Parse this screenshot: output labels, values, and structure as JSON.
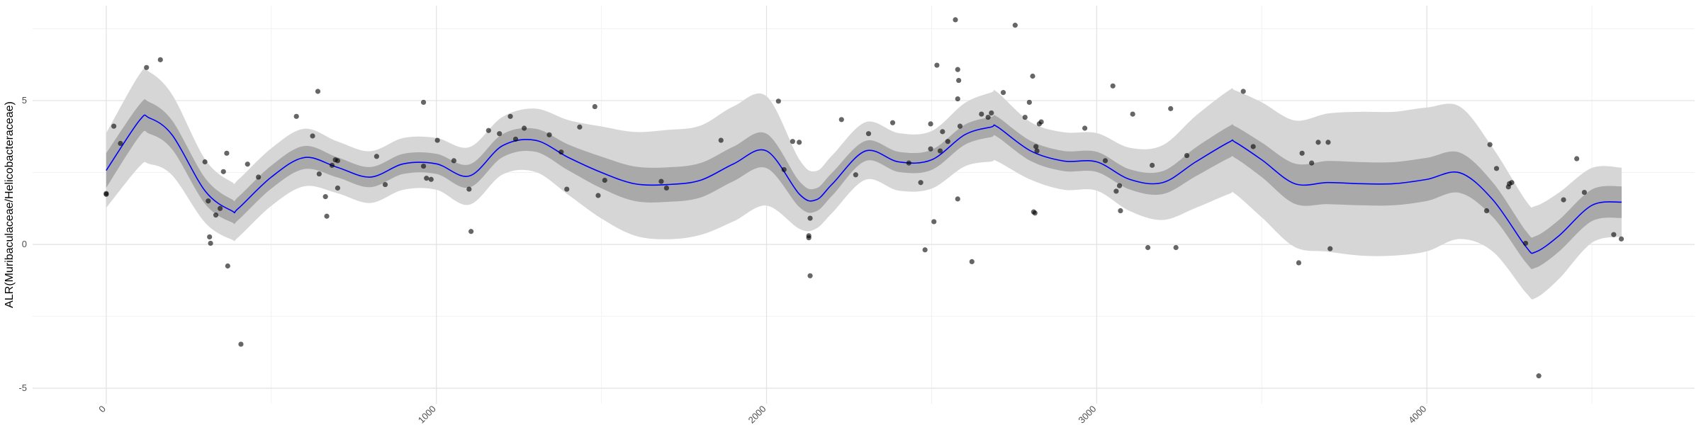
{
  "chart_data": {
    "type": "scatter",
    "y_label": "ALR(Muribaculaceae/Helicobacteraceae)",
    "xlim": [
      -223,
      4811
    ],
    "ylim": [
      -5.54,
      8.3
    ],
    "xticks": [
      0,
      1000,
      2000,
      3000,
      4000
    ],
    "yticks": [
      -5,
      0,
      5
    ],
    "x_minor_ticks": [
      500,
      1500,
      2500,
      3500,
      4500
    ],
    "y_minor_ticks": [
      -2.5,
      2.5,
      7.5
    ],
    "grid": true,
    "points": {
      "color": "#000000",
      "x": [
        0,
        0,
        23,
        43,
        122,
        164,
        299,
        309,
        313,
        316,
        332,
        345,
        355,
        365,
        368,
        408,
        428,
        461,
        576,
        625,
        641,
        645,
        664,
        668,
        684,
        694,
        701,
        701,
        819,
        845,
        961,
        961,
        970,
        984,
        1003,
        1053,
        1099,
        1105,
        1158,
        1191,
        1224,
        1240,
        1266,
        1342,
        1378,
        1395,
        1434,
        1480,
        1490,
        1510,
        1681,
        1697,
        1862,
        2036,
        2053,
        2079,
        2099,
        2128,
        2128,
        2132,
        2132,
        2227,
        2270,
        2309,
        2382,
        2431,
        2467,
        2480,
        2497,
        2497,
        2507,
        2516,
        2526,
        2533,
        2549,
        2572,
        2579,
        2579,
        2579,
        2582,
        2586,
        2622,
        2651,
        2671,
        2681,
        2717,
        2753,
        2783,
        2796,
        2806,
        2809,
        2813,
        2816,
        2819,
        2826,
        2832,
        2964,
        3026,
        3049,
        3059,
        3069,
        3072,
        3109,
        3155,
        3168,
        3224,
        3240,
        3273,
        3444,
        3474,
        3612,
        3622,
        3651,
        3671,
        3701,
        3707,
        4181,
        4191,
        4211,
        4247,
        4250,
        4257,
        4299,
        4339,
        4414,
        4454,
        4477,
        4566,
        4589
      ],
      "y": [
        1.77,
        1.74,
        4.11,
        3.51,
        6.15,
        6.42,
        2.87,
        1.51,
        0.26,
        0.04,
        1.02,
        1.25,
        2.53,
        3.17,
        -0.75,
        -3.47,
        2.79,
        2.34,
        4.45,
        3.77,
        5.32,
        2.45,
        1.66,
        0.98,
        2.75,
        2.94,
        2.91,
        1.96,
        3.06,
        2.08,
        4.94,
        2.72,
        2.3,
        2.26,
        3.62,
        2.91,
        1.92,
        0.45,
        3.96,
        3.85,
        4.45,
        3.66,
        4.04,
        3.81,
        3.21,
        1.92,
        4.08,
        4.79,
        1.7,
        2.23,
        2.19,
        1.96,
        3.62,
        4.98,
        2.6,
        3.58,
        3.55,
        0.3,
        0.23,
        -1.09,
        0.91,
        4.34,
        2.42,
        3.85,
        4.23,
        2.83,
        2.15,
        -0.19,
        3.32,
        4.19,
        0.79,
        6.23,
        3.25,
        3.92,
        3.58,
        7.81,
        1.58,
        6.08,
        5.06,
        5.7,
        4.11,
        -0.6,
        4.53,
        4.42,
        4.57,
        5.28,
        7.62,
        4.42,
        4.94,
        5.85,
        1.13,
        1.09,
        3.4,
        3.25,
        4.19,
        4.26,
        4.04,
        2.91,
        5.51,
        1.85,
        2.04,
        1.17,
        4.53,
        -0.11,
        2.75,
        4.72,
        -0.11,
        3.09,
        5.32,
        3.4,
        -0.64,
        3.17,
        2.83,
        3.55,
        3.55,
        -0.15,
        1.17,
        3.47,
        2.64,
        2,
        2.11,
        2.15,
        0.04,
        -4.57,
        1.55,
        2.98,
        1.81,
        0.34,
        0.19
      ]
    },
    "fit": {
      "color": "#0000ff",
      "x": [
        0,
        100,
        130,
        200,
        300,
        380,
        400,
        500,
        600,
        700,
        800,
        900,
        1000,
        1100,
        1200,
        1300,
        1400,
        1500,
        1600,
        1700,
        1800,
        1900,
        2000,
        2100,
        2150,
        2200,
        2300,
        2400,
        2500,
        2600,
        2680,
        2700,
        2800,
        2900,
        3000,
        3100,
        3200,
        3300,
        3400,
        3420,
        3500,
        3600,
        3700,
        3800,
        3900,
        4000,
        4100,
        4200,
        4300,
        4330,
        4400,
        4500,
        4590
      ],
      "y": [
        2.57,
        4.3,
        4.4,
        3.8,
        1.85,
        1.17,
        1.25,
        2.34,
        3.02,
        2.68,
        2.34,
        2.8,
        2.8,
        2.38,
        3.43,
        3.62,
        3.02,
        2.5,
        2.11,
        2.08,
        2.23,
        2.8,
        3.25,
        1.74,
        1.55,
        2.11,
        3.25,
        2.87,
        2.94,
        3.81,
        4.08,
        4.08,
        3.25,
        2.9,
        2.87,
        2.26,
        2.15,
        2.87,
        3.55,
        3.55,
        2.94,
        2.11,
        2.15,
        2.11,
        2.11,
        2.26,
        2.49,
        1.55,
        -0.08,
        -0.26,
        0.3,
        1.36,
        1.47
      ]
    },
    "inner_band": {
      "color": "#a9a9a9",
      "lower": [
        1.97,
        3.75,
        3.85,
        3.3,
        1.4,
        0.77,
        0.85,
        1.94,
        2.62,
        2.33,
        1.99,
        2.45,
        2.45,
        1.98,
        3.03,
        3.22,
        2.57,
        1.95,
        1.51,
        1.48,
        1.63,
        2.2,
        2.65,
        1.29,
        1.15,
        1.71,
        2.9,
        2.52,
        2.59,
        3.46,
        3.73,
        3.73,
        2.9,
        2.55,
        2.52,
        1.91,
        1.75,
        2.37,
        3,
        3,
        2.34,
        1.41,
        1.4,
        1.36,
        1.36,
        1.51,
        1.79,
        0.95,
        -0.63,
        -0.81,
        -0.25,
        0.81,
        0.92
      ],
      "upper": [
        3.17,
        4.85,
        4.95,
        4.3,
        2.3,
        1.57,
        1.65,
        2.74,
        3.42,
        3.03,
        2.69,
        3.15,
        3.15,
        2.78,
        3.83,
        4.02,
        3.47,
        3.05,
        2.71,
        2.68,
        2.83,
        3.4,
        3.85,
        2.19,
        1.95,
        2.51,
        3.6,
        3.22,
        3.29,
        4.16,
        4.43,
        4.43,
        3.6,
        3.25,
        3.22,
        2.61,
        2.55,
        3.37,
        4.1,
        4.1,
        3.54,
        2.81,
        2.9,
        2.86,
        2.86,
        3.01,
        3.19,
        2.15,
        0.47,
        0.29,
        0.85,
        1.91,
        2.02
      ]
    },
    "outer_band": {
      "color": "#d6d6d6",
      "lower": [
        1.27,
        2.7,
        2.8,
        2.4,
        0.75,
        0.17,
        0.25,
        1.34,
        2.02,
        1.78,
        1.44,
        1.9,
        1.9,
        1.38,
        2.43,
        2.52,
        1.72,
        0.9,
        0.31,
        0.18,
        0.33,
        0.8,
        1.35,
        0.54,
        0.55,
        1.11,
        2.25,
        1.87,
        1.94,
        2.71,
        2.88,
        2.88,
        2.25,
        1.9,
        1.87,
        1.16,
        0.85,
        1.27,
        1.75,
        1.75,
        0.94,
        -0.09,
        -0.25,
        -0.39,
        -0.39,
        -0.24,
        0.19,
        -0.25,
        -1.68,
        -1.86,
        -1.2,
        0.06,
        0.27
      ],
      "upper": [
        3.87,
        5.9,
        6,
        5.2,
        2.95,
        2.17,
        2.25,
        3.34,
        4.02,
        3.58,
        3.24,
        3.7,
        3.7,
        3.38,
        4.43,
        4.72,
        4.32,
        4.1,
        3.91,
        3.98,
        4.13,
        4.8,
        5.15,
        2.94,
        2.55,
        3.11,
        4.25,
        3.87,
        3.94,
        4.91,
        5.28,
        5.28,
        4.25,
        3.9,
        3.87,
        3.36,
        3.45,
        4.47,
        5.35,
        5.35,
        4.94,
        4.31,
        4.55,
        4.61,
        4.61,
        4.76,
        4.79,
        3.35,
        1.52,
        1.34,
        1.8,
        2.66,
        2.67
      ]
    }
  }
}
